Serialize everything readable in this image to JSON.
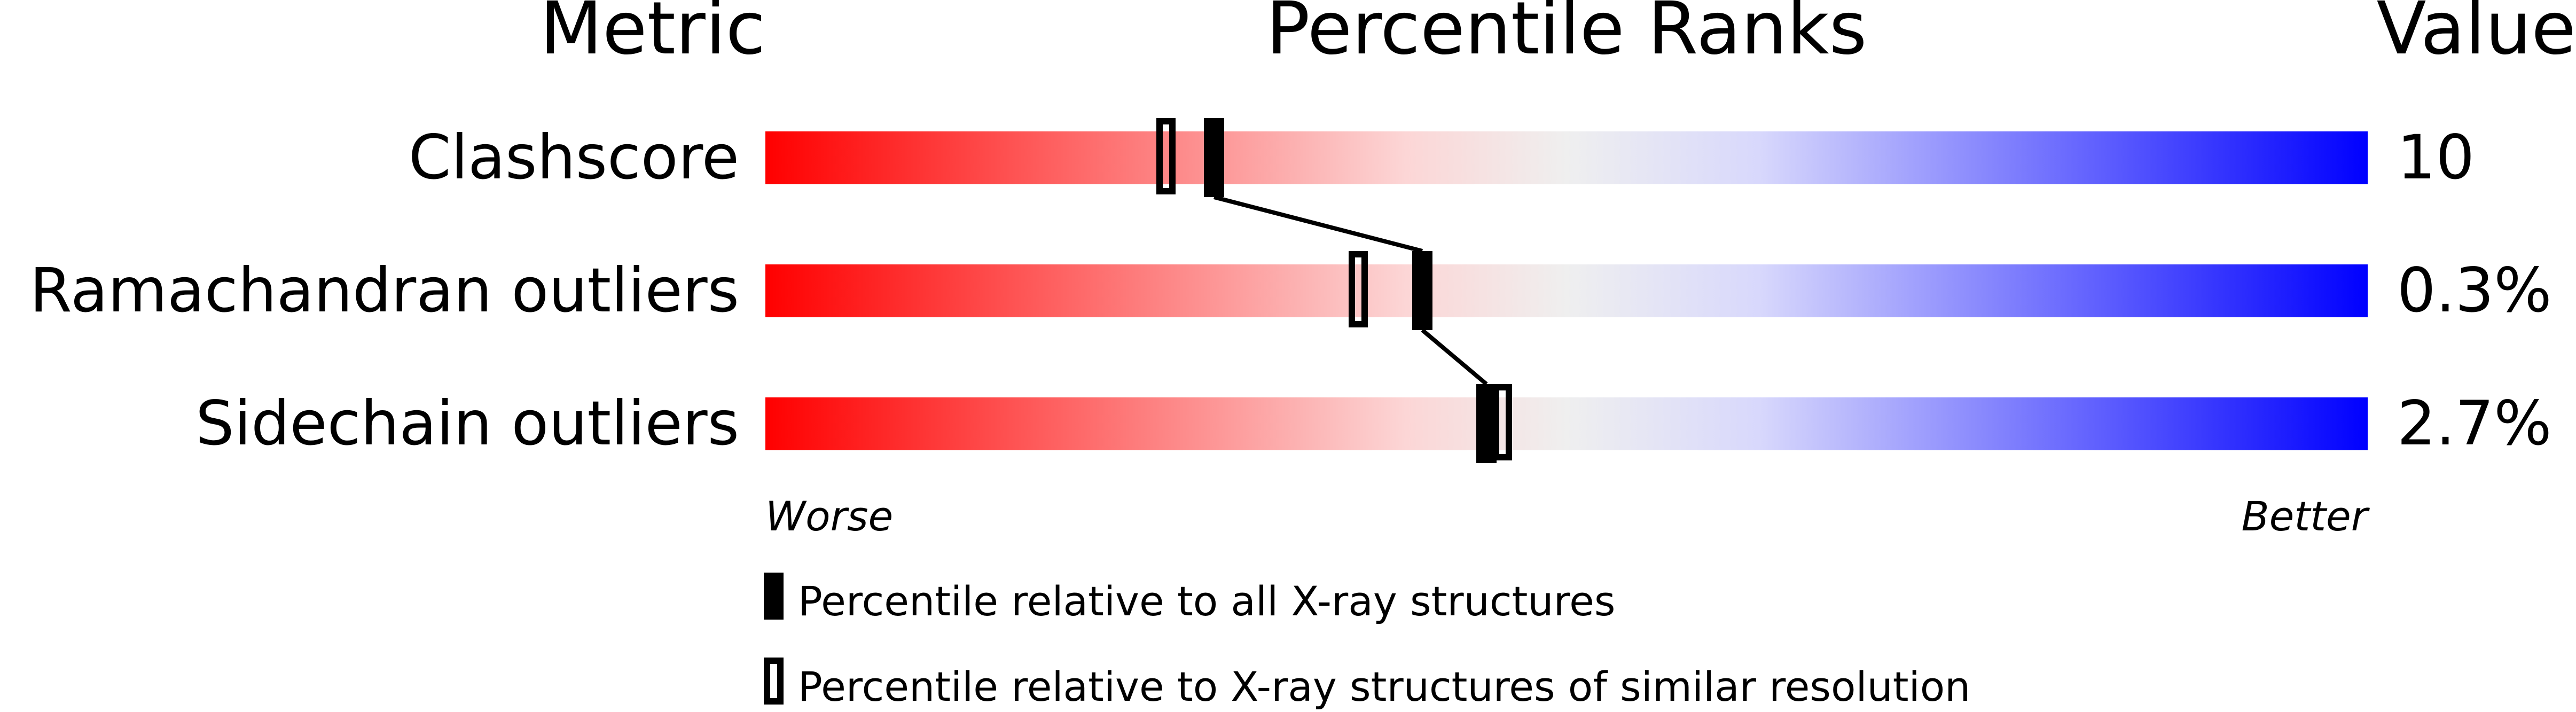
{
  "chart_data": {
    "type": "bar",
    "headers": {
      "metric": "Metric",
      "ranks": "Percentile Ranks",
      "value": "Value"
    },
    "xlim": [
      0,
      100
    ],
    "axis_ends": {
      "left": "Worse",
      "right": "Better"
    },
    "gradient_colors": [
      "#ff0000",
      "#fcd6d6",
      "#efefef",
      "#d8d8fc",
      "#0000ff"
    ],
    "rows": [
      {
        "metric": "Clashscore",
        "value": "10",
        "percentile_all": 28,
        "percentile_similar": 25
      },
      {
        "metric": "Ramachandran outliers",
        "value": "0.3%",
        "percentile_all": 41,
        "percentile_similar": 37
      },
      {
        "metric": "Sidechain outliers",
        "value": "2.7%",
        "percentile_all": 45,
        "percentile_similar": 46
      }
    ],
    "legend": [
      {
        "marker": "filled",
        "label": "Percentile relative to all X-ray structures"
      },
      {
        "marker": "hollow",
        "label": "Percentile relative to X-ray structures of similar resolution"
      }
    ]
  }
}
